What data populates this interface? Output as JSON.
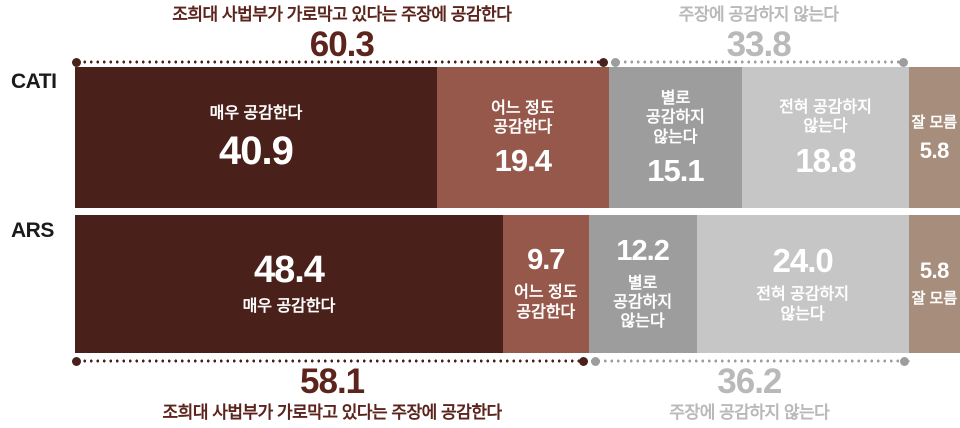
{
  "chart_data": {
    "type": "bar",
    "subtype": "stacked-horizontal",
    "unit": "percent",
    "categories": [
      "CATI",
      "ARS"
    ],
    "series": [
      {
        "name": "매우 공감한다",
        "color": "#4a211a",
        "values": [
          40.9,
          48.4
        ]
      },
      {
        "name": "어느 정도 공감한다",
        "color": "#96584a",
        "values": [
          19.4,
          9.7
        ]
      },
      {
        "name": "별로 공감하지 않는다",
        "color": "#9d9d9d",
        "values": [
          15.1,
          12.2
        ]
      },
      {
        "name": "전혀 공감하지 않는다",
        "color": "#c6c6c6",
        "values": [
          18.8,
          24.0
        ]
      },
      {
        "name": "잘 모름",
        "color": "#a78d7c",
        "values": [
          5.8,
          5.8
        ]
      }
    ],
    "totals": {
      "cati_agree": 60.3,
      "cati_disagree": 33.8,
      "ars_agree": 58.1,
      "ars_disagree": 36.2
    },
    "agree_title": "조희대 사법부가 가로막고 있다는 주장에 공감한다",
    "disagree_title": "주장에 공감하지 않는다",
    "xlim": [
      0,
      100
    ],
    "grid": false,
    "legend": "labels-inside-bars"
  },
  "colors": {
    "agree_annotation": "#5c241d",
    "disagree_annotation": "#b9b9b9",
    "row_label": "#1a1a1a",
    "background": "#ffffff"
  },
  "annotations": {
    "top_agree": {
      "label": "조희대 사법부가 가로막고 있다는 주장에 공감한다",
      "value": "60.3"
    },
    "top_disagree": {
      "label": "주장에 공감하지 않는다",
      "value": "33.8"
    },
    "bottom_agree": {
      "label": "조희대 사법부가 가로막고 있다는 주장에 공감한다",
      "value": "58.1"
    },
    "bottom_disagree": {
      "label": "주장에 공감하지 않는다",
      "value": "36.2"
    }
  },
  "rows": [
    {
      "name": "CATI",
      "segments": [
        {
          "label": "매우 공감한다",
          "value": "40.9"
        },
        {
          "label": "어느 정도\n공감한다",
          "value": "19.4"
        },
        {
          "label": "별로\n공감하지\n않는다",
          "value": "15.1"
        },
        {
          "label": "전혀 공감하지\n않는다",
          "value": "18.8"
        },
        {
          "label": "잘 모름",
          "value": "5.8"
        }
      ]
    },
    {
      "name": "ARS",
      "segments": [
        {
          "label": "매우 공감한다",
          "value": "48.4"
        },
        {
          "label": "어느 정도\n공감한다",
          "value": "9.7"
        },
        {
          "label": "별로\n공감하지\n않는다",
          "value": "12.2"
        },
        {
          "label": "전혀 공감하지\n않는다",
          "value": "24.0"
        },
        {
          "label": "잘 모름",
          "value": "5.8"
        }
      ]
    }
  ]
}
